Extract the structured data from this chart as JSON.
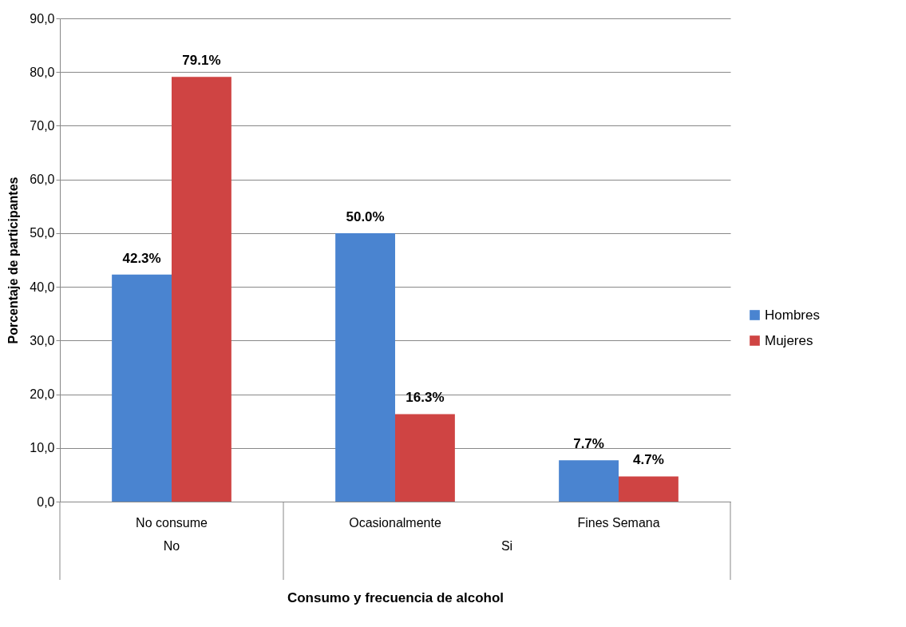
{
  "chart_data": {
    "type": "bar",
    "xlabel": "Consumo y frecuencia de alcohol",
    "ylabel": "Porcentaje de participantes",
    "categories": [
      "No consume",
      "Ocasionalmente",
      "Fines Semana"
    ],
    "series": [
      {
        "name": "Hombres",
        "color": "#4a84d0",
        "values": [
          42.3,
          50.0,
          7.7
        ],
        "value_labels": [
          "42.3%",
          "50.0%",
          "7.7%"
        ]
      },
      {
        "name": "Mujeres",
        "color": "#cf4443",
        "values": [
          79.1,
          16.3,
          4.7
        ],
        "value_labels": [
          "79.1%",
          "16.3%",
          "4.7%"
        ]
      }
    ],
    "annotations": [
      "No",
      "Si"
    ],
    "ylim": [
      0,
      90
    ],
    "yticks": [
      {
        "value": 0,
        "label": "0,0"
      },
      {
        "value": 10,
        "label": "10,0"
      },
      {
        "value": 20,
        "label": "20,0"
      },
      {
        "value": 30,
        "label": "30,0"
      },
      {
        "value": 40,
        "label": "40,0"
      },
      {
        "value": 50,
        "label": "50,0"
      },
      {
        "value": 60,
        "label": "60,0"
      },
      {
        "value": 70,
        "label": "70,0"
      },
      {
        "value": 80,
        "label": "80,0"
      },
      {
        "value": 90,
        "label": "90,0"
      }
    ],
    "grid": "y",
    "legend": "right"
  }
}
